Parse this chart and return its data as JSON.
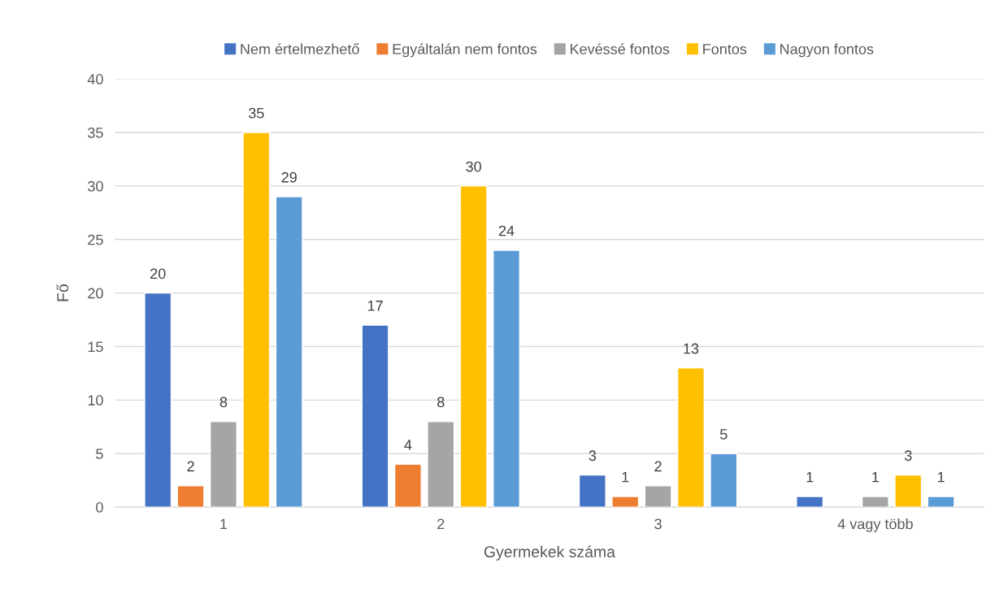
{
  "chart_data": {
    "type": "bar",
    "xlabel": "Gyermekek száma",
    "ylabel": "Fő",
    "categories": [
      "1",
      "2",
      "3",
      "4 vagy több"
    ],
    "series": [
      {
        "name": "Nem értelmezhető",
        "color": "#4472c4",
        "values": [
          20,
          17,
          3,
          1
        ]
      },
      {
        "name": "Egyáltalán nem fontos",
        "color": "#ed7d31",
        "values": [
          2,
          4,
          1,
          null
        ]
      },
      {
        "name": "Kevéssé fontos",
        "color": "#a5a5a5",
        "values": [
          8,
          8,
          2,
          1
        ]
      },
      {
        "name": "Fontos",
        "color": "#ffc000",
        "values": [
          35,
          30,
          13,
          3
        ]
      },
      {
        "name": "Nagyon fontos",
        "color": "#5b9bd5",
        "values": [
          29,
          24,
          5,
          1
        ]
      }
    ],
    "ylim": [
      0,
      40
    ],
    "yticks": [
      0,
      5,
      10,
      15,
      20,
      25,
      30,
      35,
      40
    ],
    "grid": "y",
    "legend": "top",
    "data_labels": true
  }
}
